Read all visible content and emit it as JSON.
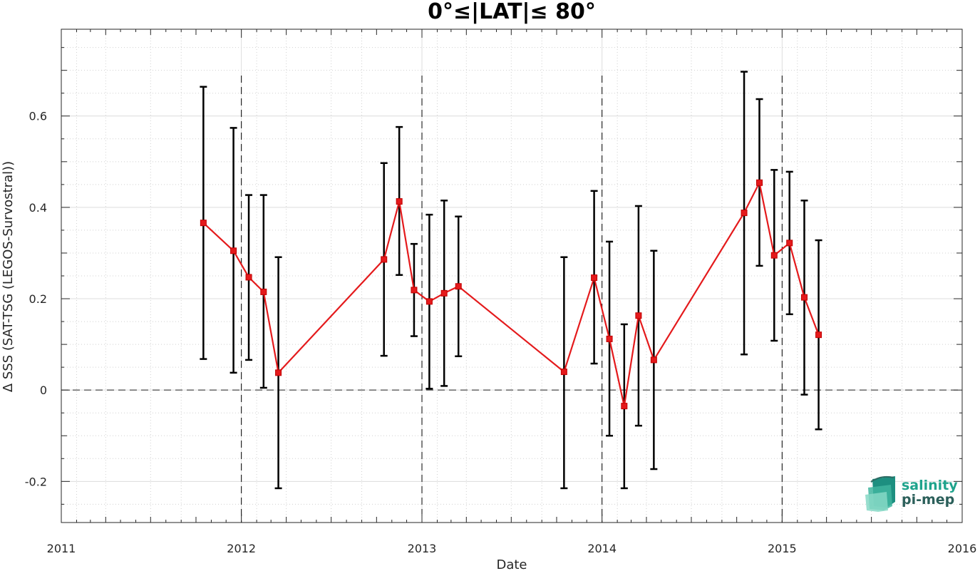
{
  "chart_data": {
    "type": "line",
    "title": "0°≤|LAT|≤ 80°",
    "xlabel": "Date",
    "ylabel": "Δ SSS (SAT-TSG (LEGOS-Survostral))",
    "x_tick_labels": [
      "2011",
      "2012",
      "2013",
      "2014",
      "2015",
      "2016"
    ],
    "y_tick_labels": [
      "-0.2",
      "0",
      "0.2",
      "0.4",
      "0.6"
    ],
    "y_ticks": [
      -0.2,
      0,
      0.2,
      0.4,
      0.6
    ],
    "xlim": [
      "2011-01-01",
      "2016-01-01"
    ],
    "ylim": [
      -0.29,
      0.79
    ],
    "grid": true,
    "minor_grid": true,
    "reference_line_y": 0,
    "year_boundaries": [
      "2012-01-01",
      "2013-01-01",
      "2014-01-01",
      "2015-01-01"
    ],
    "line_color": "#e41a1c",
    "errorbar_color": "#000000",
    "series": [
      {
        "points": [
          {
            "date": "2011-10-16",
            "value": 0.366,
            "lower": 0.068,
            "upper": 0.664
          },
          {
            "date": "2011-12-16",
            "value": 0.305,
            "lower": 0.038,
            "upper": 0.574
          },
          {
            "date": "2012-01-16",
            "value": 0.247,
            "lower": 0.066,
            "upper": 0.427
          },
          {
            "date": "2012-02-15",
            "value": 0.215,
            "lower": 0.005,
            "upper": 0.427
          },
          {
            "date": "2012-03-16",
            "value": 0.038,
            "lower": -0.215,
            "upper": 0.291
          },
          {
            "date": "2012-10-16",
            "value": 0.286,
            "lower": 0.075,
            "upper": 0.497
          },
          {
            "date": "2012-11-16",
            "value": 0.413,
            "lower": 0.252,
            "upper": 0.576
          },
          {
            "date": "2012-12-16",
            "value": 0.219,
            "lower": 0.118,
            "upper": 0.32
          },
          {
            "date": "2013-01-16",
            "value": 0.194,
            "lower": 0.003,
            "upper": 0.384
          },
          {
            "date": "2013-02-15",
            "value": 0.212,
            "lower": 0.009,
            "upper": 0.415
          },
          {
            "date": "2013-03-16",
            "value": 0.227,
            "lower": 0.074,
            "upper": 0.38
          },
          {
            "date": "2013-10-16",
            "value": 0.04,
            "lower": -0.215,
            "upper": 0.291
          },
          {
            "date": "2013-12-16",
            "value": 0.246,
            "lower": 0.058,
            "upper": 0.436
          },
          {
            "date": "2014-01-16",
            "value": 0.112,
            "lower": -0.1,
            "upper": 0.325
          },
          {
            "date": "2014-02-15",
            "value": -0.035,
            "lower": -0.215,
            "upper": 0.144
          },
          {
            "date": "2014-03-16",
            "value": 0.163,
            "lower": -0.078,
            "upper": 0.403
          },
          {
            "date": "2014-04-16",
            "value": 0.066,
            "lower": -0.173,
            "upper": 0.305
          },
          {
            "date": "2014-10-16",
            "value": 0.388,
            "lower": 0.078,
            "upper": 0.697
          },
          {
            "date": "2014-11-16",
            "value": 0.454,
            "lower": 0.272,
            "upper": 0.637
          },
          {
            "date": "2014-12-16",
            "value": 0.295,
            "lower": 0.108,
            "upper": 0.482
          },
          {
            "date": "2015-01-16",
            "value": 0.322,
            "lower": 0.166,
            "upper": 0.478
          },
          {
            "date": "2015-02-15",
            "value": 0.203,
            "lower": -0.01,
            "upper": 0.415
          },
          {
            "date": "2015-03-16",
            "value": 0.121,
            "lower": -0.086,
            "upper": 0.328
          }
        ]
      }
    ]
  },
  "logo": {
    "line1": "salinity",
    "line2": "pi-mep",
    "color1": "#1fa38c",
    "color2": "#2b5f5a"
  }
}
